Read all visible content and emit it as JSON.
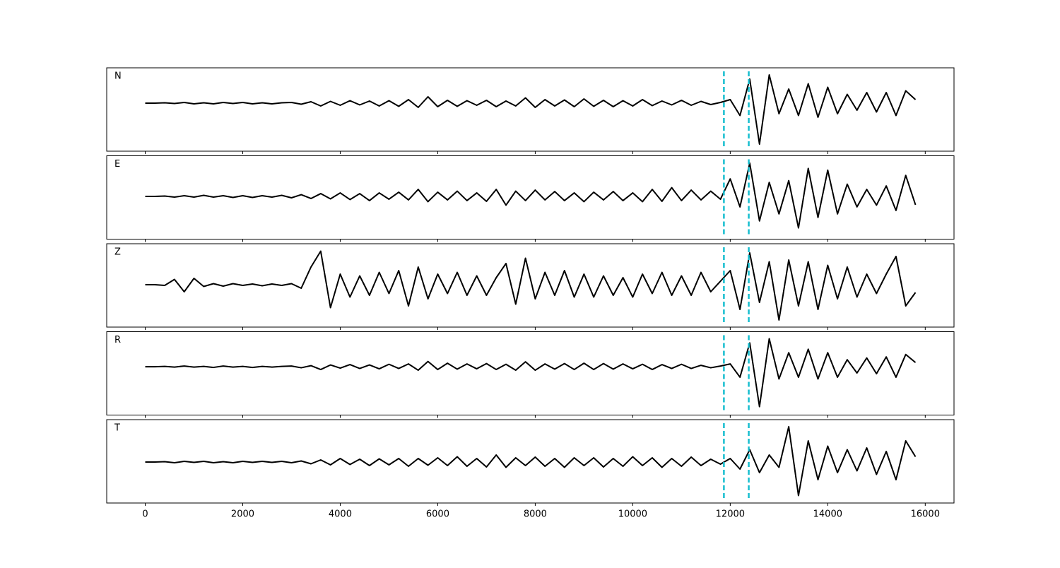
{
  "chart_data": {
    "type": "line",
    "layout": "stacked",
    "x": [
      0,
      200,
      400,
      600,
      800,
      1000,
      1200,
      1400,
      1600,
      1800,
      2000,
      2200,
      2400,
      2600,
      2800,
      3000,
      3200,
      3400,
      3600,
      3800,
      4000,
      4200,
      4400,
      4600,
      4800,
      5000,
      5200,
      5400,
      5600,
      5800,
      6000,
      6200,
      6400,
      6600,
      6800,
      7000,
      7200,
      7400,
      7600,
      7800,
      8000,
      8200,
      8400,
      8600,
      8800,
      9000,
      9200,
      9400,
      9600,
      9800,
      10000,
      10200,
      10400,
      10600,
      10800,
      11000,
      11200,
      11400,
      11600,
      11800,
      12000,
      12200,
      12400,
      12600,
      12800,
      13000,
      13200,
      13400,
      13600,
      13800,
      14000,
      14200,
      14400,
      14600,
      14800,
      15000,
      15200,
      15400,
      15600,
      15800
    ],
    "xlim": [
      -790,
      16590
    ],
    "xticks": [
      0,
      2000,
      4000,
      6000,
      8000,
      10000,
      12000,
      14000,
      16000
    ],
    "vlines": [
      11870,
      12380
    ],
    "vline_color": "#17becf",
    "vline_style": "dashed",
    "series": [
      {
        "name": "N",
        "color": "#000000",
        "ylim": [
          -1.36,
          1.0
        ],
        "values": [
          0,
          0,
          0.01,
          -0.01,
          0.02,
          -0.02,
          0.01,
          -0.02,
          0.02,
          -0.01,
          0.02,
          -0.02,
          0.01,
          -0.02,
          0.01,
          0.02,
          -0.03,
          0.04,
          -0.08,
          0.05,
          -0.06,
          0.07,
          -0.05,
          0.06,
          -0.08,
          0.07,
          -0.09,
          0.1,
          -0.12,
          0.18,
          -0.1,
          0.08,
          -0.09,
          0.07,
          -0.06,
          0.08,
          -0.1,
          0.06,
          -0.08,
          0.15,
          -0.12,
          0.1,
          -0.08,
          0.09,
          -0.1,
          0.12,
          -0.09,
          0.08,
          -0.1,
          0.07,
          -0.08,
          0.1,
          -0.07,
          0.06,
          -0.05,
          0.08,
          -0.06,
          0.05,
          -0.04,
          0.02,
          0.1,
          -0.35,
          0.68,
          -1.16,
          0.8,
          -0.3,
          0.4,
          -0.35,
          0.55,
          -0.4,
          0.45,
          -0.3,
          0.25,
          -0.2,
          0.3,
          -0.25,
          0.3,
          -0.35,
          0.35,
          0.1
        ]
      },
      {
        "name": "E",
        "color": "#000000",
        "ylim": [
          -1.22,
          1.16
        ],
        "values": [
          0,
          0,
          0.01,
          -0.02,
          0.02,
          -0.02,
          0.03,
          -0.02,
          0.02,
          -0.03,
          0.02,
          -0.03,
          0.02,
          -0.02,
          0.03,
          -0.04,
          0.05,
          -0.06,
          0.08,
          -0.07,
          0.1,
          -0.09,
          0.08,
          -0.12,
          0.1,
          -0.08,
          0.12,
          -0.1,
          0.2,
          -0.15,
          0.12,
          -0.1,
          0.15,
          -0.12,
          0.1,
          -0.14,
          0.2,
          -0.25,
          0.15,
          -0.12,
          0.18,
          -0.1,
          0.14,
          -0.12,
          0.1,
          -0.15,
          0.12,
          -0.1,
          0.14,
          -0.12,
          0.1,
          -0.15,
          0.2,
          -0.14,
          0.25,
          -0.12,
          0.18,
          -0.1,
          0.15,
          -0.08,
          0.5,
          -0.3,
          0.95,
          -0.7,
          0.4,
          -0.5,
          0.45,
          -0.9,
          0.8,
          -0.6,
          0.75,
          -0.5,
          0.35,
          -0.3,
          0.2,
          -0.25,
          0.3,
          -0.4,
          0.6,
          -0.24
        ]
      },
      {
        "name": "Z",
        "color": "#000000",
        "ylim": [
          -1.2,
          1.16
        ],
        "values": [
          0,
          0,
          -0.02,
          0.15,
          -0.2,
          0.18,
          -0.05,
          0.03,
          -0.04,
          0.03,
          -0.02,
          0.02,
          -0.03,
          0.02,
          -0.02,
          0.03,
          -0.1,
          0.5,
          0.95,
          -0.65,
          0.3,
          -0.35,
          0.25,
          -0.3,
          0.35,
          -0.25,
          0.4,
          -0.6,
          0.5,
          -0.4,
          0.3,
          -0.25,
          0.35,
          -0.3,
          0.25,
          -0.3,
          0.2,
          0.6,
          -0.55,
          0.75,
          -0.4,
          0.35,
          -0.3,
          0.4,
          -0.35,
          0.3,
          -0.35,
          0.25,
          -0.3,
          0.2,
          -0.35,
          0.3,
          -0.25,
          0.35,
          -0.3,
          0.25,
          -0.3,
          0.35,
          -0.2,
          0.1,
          0.4,
          -0.7,
          0.9,
          -0.5,
          0.65,
          -1.0,
          0.7,
          -0.6,
          0.65,
          -0.7,
          0.55,
          -0.4,
          0.5,
          -0.35,
          0.3,
          -0.25,
          0.3,
          0.8,
          -0.6,
          -0.22
        ]
      },
      {
        "name": "R",
        "color": "#000000",
        "ylim": [
          -1.38,
          1.0
        ],
        "values": [
          0,
          0,
          0.01,
          -0.01,
          0.02,
          -0.01,
          0.01,
          -0.02,
          0.02,
          -0.01,
          0.01,
          -0.02,
          0.01,
          -0.01,
          0.01,
          0.02,
          -0.03,
          0.03,
          -0.08,
          0.05,
          -0.04,
          0.06,
          -0.05,
          0.05,
          -0.06,
          0.07,
          -0.05,
          0.08,
          -0.1,
          0.15,
          -0.08,
          0.1,
          -0.07,
          0.08,
          -0.06,
          0.09,
          -0.08,
          0.07,
          -0.1,
          0.14,
          -0.1,
          0.08,
          -0.07,
          0.09,
          -0.08,
          0.1,
          -0.08,
          0.09,
          -0.07,
          0.08,
          -0.06,
          0.07,
          -0.08,
          0.06,
          -0.05,
          0.07,
          -0.05,
          0.04,
          -0.03,
          0.02,
          0.08,
          -0.3,
          0.68,
          -1.14,
          0.8,
          -0.35,
          0.4,
          -0.3,
          0.5,
          -0.35,
          0.4,
          -0.3,
          0.2,
          -0.18,
          0.25,
          -0.2,
          0.28,
          -0.3,
          0.35,
          0.12
        ]
      },
      {
        "name": "T",
        "color": "#000000",
        "ylim": [
          -1.16,
          1.2
        ],
        "values": [
          0,
          0,
          0.01,
          -0.02,
          0.02,
          -0.01,
          0.02,
          -0.02,
          0.01,
          -0.02,
          0.02,
          -0.01,
          0.02,
          -0.01,
          0.02,
          -0.02,
          0.03,
          -0.05,
          0.06,
          -0.08,
          0.1,
          -0.07,
          0.08,
          -0.1,
          0.09,
          -0.08,
          0.1,
          -0.12,
          0.1,
          -0.09,
          0.12,
          -0.1,
          0.15,
          -0.12,
          0.1,
          -0.14,
          0.2,
          -0.15,
          0.12,
          -0.1,
          0.14,
          -0.12,
          0.1,
          -0.15,
          0.12,
          -0.1,
          0.12,
          -0.14,
          0.1,
          -0.12,
          0.15,
          -0.1,
          0.12,
          -0.15,
          0.1,
          -0.12,
          0.14,
          -0.1,
          0.08,
          -0.06,
          0.1,
          -0.2,
          0.35,
          -0.3,
          0.2,
          -0.15,
          1.0,
          -0.95,
          0.6,
          -0.5,
          0.45,
          -0.3,
          0.35,
          -0.25,
          0.4,
          -0.35,
          0.3,
          -0.5,
          0.6,
          0.15
        ]
      }
    ]
  }
}
